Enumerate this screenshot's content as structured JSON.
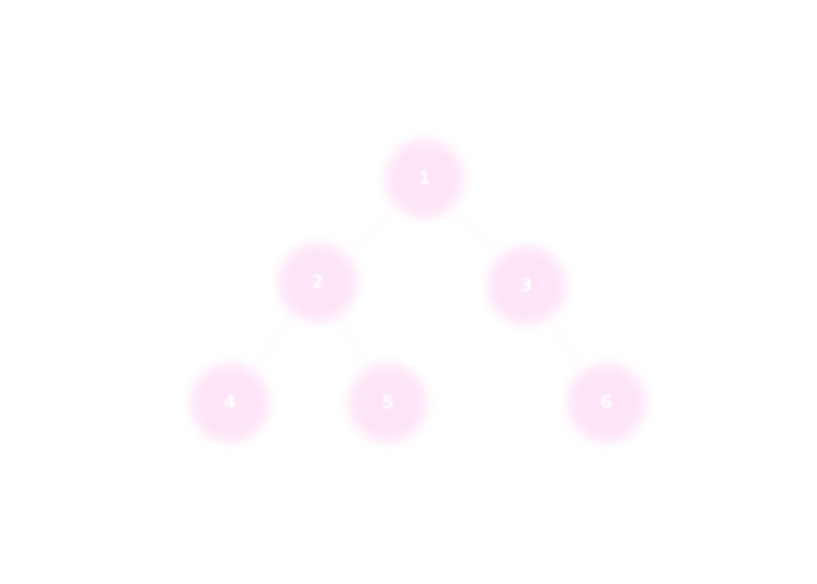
{
  "diagram": {
    "type": "tree",
    "node_color": "#fde4f7",
    "node_glow_color": "#fff0fb",
    "label_color": "#ffffff",
    "nodes": [
      {
        "id": "n1",
        "label": "1"
      },
      {
        "id": "n2",
        "label": "2"
      },
      {
        "id": "n3",
        "label": "3"
      },
      {
        "id": "n4",
        "label": "4"
      },
      {
        "id": "n5",
        "label": "5"
      },
      {
        "id": "n6",
        "label": "6"
      }
    ],
    "edges": [
      {
        "from": "n1",
        "to": "n2"
      },
      {
        "from": "n1",
        "to": "n3"
      },
      {
        "from": "n2",
        "to": "n4"
      },
      {
        "from": "n2",
        "to": "n5"
      },
      {
        "from": "n3",
        "to": "n6"
      }
    ]
  }
}
